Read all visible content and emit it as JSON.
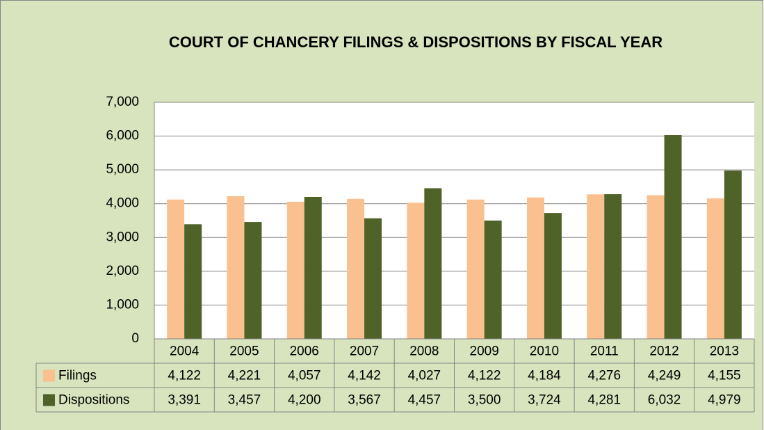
{
  "chart_data": {
    "type": "bar",
    "title": "COURT OF CHANCERY FILINGS & DISPOSITIONS BY FISCAL YEAR",
    "categories": [
      "2004",
      "2005",
      "2006",
      "2007",
      "2008",
      "2009",
      "2010",
      "2011",
      "2012",
      "2013"
    ],
    "series": [
      {
        "name": "Filings",
        "color": "#fac090",
        "values": [
          4122,
          4221,
          4057,
          4142,
          4027,
          4122,
          4184,
          4276,
          4249,
          4155
        ],
        "value_labels": [
          "4,122",
          "4,221",
          "4,057",
          "4,142",
          "4,027",
          "4,122",
          "4,184",
          "4,276",
          "4,249",
          "4,155"
        ]
      },
      {
        "name": "Dispositions",
        "color": "#4f6228",
        "values": [
          3391,
          3457,
          4200,
          3567,
          4457,
          3500,
          3724,
          4281,
          6032,
          4979
        ],
        "value_labels": [
          "3,391",
          "3,457",
          "4,200",
          "3,567",
          "4,457",
          "3,500",
          "3,724",
          "4,281",
          "6,032",
          "4,979"
        ]
      }
    ],
    "ylim": [
      0,
      7000
    ],
    "yticks": [
      0,
      {
        "value": 1000,
        "label": "1,000"
      },
      {
        "value": 2000,
        "label": "2,000"
      },
      {
        "value": 3000,
        "label": "3,000"
      },
      {
        "value": 4000,
        "label": "4,000"
      },
      {
        "value": 5000,
        "label": "5,000"
      },
      {
        "value": 6000,
        "label": "6,000"
      },
      {
        "value": 7000,
        "label": "7,000"
      }
    ],
    "grid": true
  }
}
